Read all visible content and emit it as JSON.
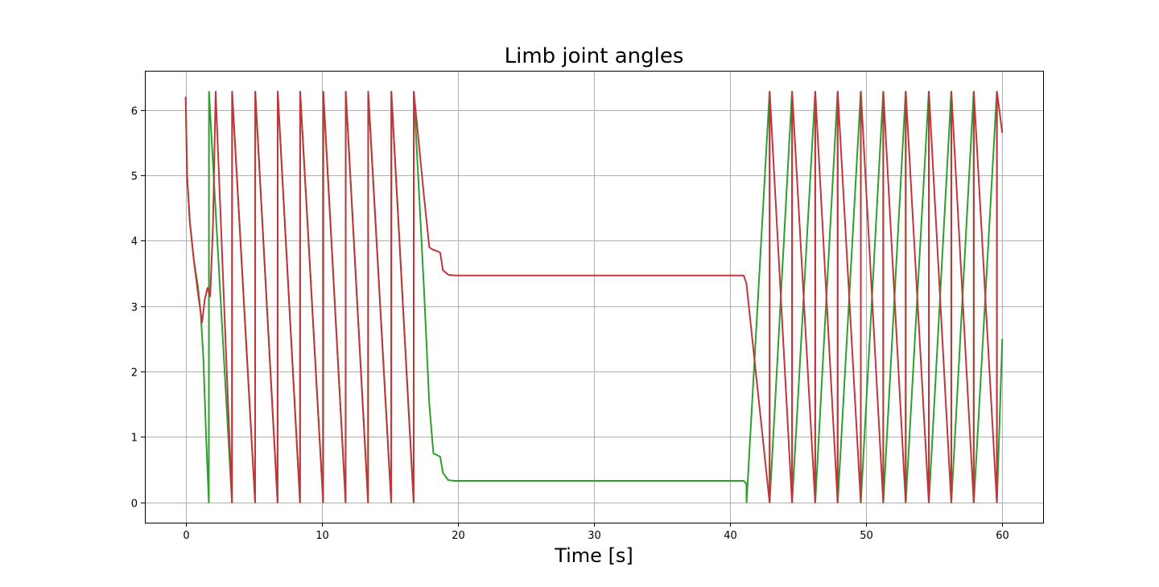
{
  "chart_data": {
    "type": "line",
    "title": "Limb joint angles",
    "xlabel": "Time [s]",
    "ylabel": "",
    "xlim": [
      -3,
      63
    ],
    "ylim": [
      -0.31,
      6.6
    ],
    "xticks": [
      0,
      10,
      20,
      30,
      40,
      50,
      60
    ],
    "yticks": [
      0,
      1,
      2,
      3,
      4,
      5,
      6
    ],
    "grid": true,
    "legend": "none",
    "series": [
      {
        "color": "#2ca02c",
        "x": [
          0.0,
          0.1,
          0.3,
          0.6,
          0.9,
          1.1,
          1.3,
          1.5,
          1.7,
          1.71,
          3.4,
          3.41,
          5.1,
          5.11,
          6.75,
          6.76,
          8.4,
          8.41,
          10.1,
          10.11,
          11.75,
          11.76,
          13.4,
          13.41,
          15.1,
          15.11,
          16.75,
          16.76,
          17.5,
          17.9,
          18.2,
          18.5,
          18.7,
          18.9,
          19.3,
          19.8,
          41.0,
          41.2,
          41.21,
          42.9,
          42.91,
          44.55,
          44.56,
          46.25,
          46.26,
          47.9,
          47.91,
          49.6,
          49.61,
          51.25,
          51.26,
          52.9,
          52.91,
          54.6,
          54.61,
          56.25,
          56.26,
          57.9,
          57.91,
          59.6,
          59.61,
          60.0
        ],
        "y": [
          6.2,
          5.0,
          4.3,
          3.7,
          3.3,
          2.9,
          2.2,
          1.0,
          0.0,
          6.28,
          0.0,
          6.28,
          0.0,
          6.28,
          0.0,
          6.28,
          0.0,
          6.28,
          0.0,
          6.28,
          0.0,
          6.28,
          0.0,
          6.28,
          0.0,
          6.28,
          0.0,
          6.28,
          3.3,
          1.5,
          0.75,
          0.72,
          0.7,
          0.45,
          0.34,
          0.33,
          0.33,
          0.28,
          0.0,
          6.28,
          0.0,
          6.28,
          0.0,
          6.28,
          0.0,
          6.28,
          0.0,
          6.28,
          0.0,
          6.28,
          0.0,
          6.28,
          0.0,
          6.28,
          0.0,
          6.28,
          0.0,
          6.28,
          0.0,
          6.28,
          0.0,
          2.5
        ]
      },
      {
        "color": "#c1353d",
        "x": [
          0.0,
          0.1,
          0.3,
          0.6,
          0.9,
          1.2,
          1.4,
          1.6,
          1.8,
          2.0,
          2.2,
          3.4,
          3.41,
          5.1,
          5.11,
          6.75,
          6.76,
          8.4,
          8.41,
          10.1,
          10.11,
          11.75,
          11.76,
          13.4,
          13.41,
          15.1,
          15.11,
          16.75,
          16.76,
          17.5,
          17.9,
          18.2,
          18.5,
          18.7,
          18.9,
          19.3,
          19.8,
          41.0,
          41.2,
          42.9,
          42.91,
          44.55,
          44.56,
          46.25,
          46.26,
          47.9,
          47.91,
          49.6,
          49.61,
          51.25,
          51.26,
          52.9,
          52.91,
          54.6,
          54.61,
          56.25,
          56.26,
          57.9,
          57.91,
          59.6,
          59.61,
          60.0
        ],
        "y": [
          6.2,
          5.0,
          4.3,
          3.7,
          3.2,
          2.75,
          3.1,
          3.28,
          3.15,
          4.2,
          6.28,
          0.0,
          6.28,
          0.0,
          6.28,
          0.0,
          6.28,
          0.0,
          6.28,
          0.0,
          6.28,
          0.0,
          6.28,
          0.0,
          6.28,
          0.0,
          6.28,
          0.0,
          6.28,
          4.7,
          3.9,
          3.86,
          3.84,
          3.82,
          3.55,
          3.48,
          3.47,
          3.47,
          3.35,
          0.0,
          6.28,
          0.0,
          6.28,
          0.0,
          6.28,
          0.0,
          6.28,
          0.0,
          6.28,
          0.0,
          6.28,
          0.0,
          6.28,
          0.0,
          6.28,
          0.0,
          6.28,
          0.0,
          6.28,
          0.0,
          6.28,
          5.65
        ]
      }
    ]
  }
}
